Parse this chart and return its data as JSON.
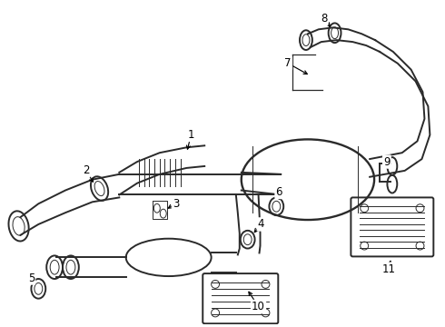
{
  "bg_color": "#ffffff",
  "line_color": "#2a2a2a",
  "lw_main": 1.4,
  "lw_thin": 0.7,
  "font_size": 8.5
}
